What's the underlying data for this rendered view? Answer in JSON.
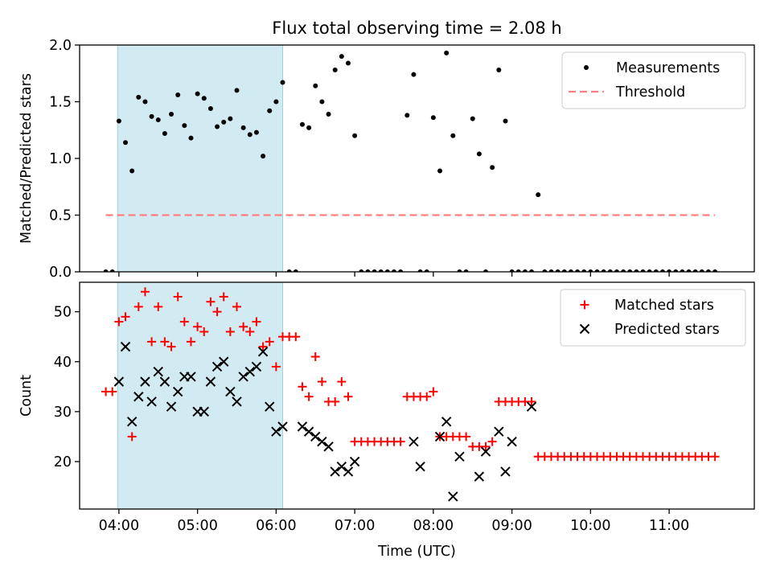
{
  "chart_data": [
    {
      "type": "scatter",
      "title": "Flux total observing time = 2.08 h",
      "xlabel": "",
      "ylabel": "Matched/Predicted stars",
      "xlim": [
        "03:30",
        "12:05"
      ],
      "ylim": [
        0,
        2.0
      ],
      "yticks": [
        "0.0",
        "0.5",
        "1.0",
        "1.5",
        "2.0"
      ],
      "xticks": [
        "04:00",
        "05:00",
        "06:00",
        "07:00",
        "08:00",
        "09:00",
        "10:00",
        "11:00"
      ],
      "xtick_labels_shown": false,
      "grid": false,
      "legend": "top-right",
      "shaded_span": {
        "x": [
          "03:59",
          "06:05"
        ],
        "color": "#add8e6"
      },
      "series": [
        {
          "name": "Measurements",
          "marker": "dot",
          "color": "#000000",
          "x": [
            "03:50",
            "03:55",
            "04:00",
            "04:05",
            "04:10",
            "04:15",
            "04:20",
            "04:25",
            "04:30",
            "04:35",
            "04:40",
            "04:45",
            "04:50",
            "04:55",
            "05:00",
            "05:05",
            "05:10",
            "05:15",
            "05:20",
            "05:25",
            "05:30",
            "05:35",
            "05:40",
            "05:45",
            "05:50",
            "05:55",
            "06:00",
            "06:05",
            "06:10",
            "06:15",
            "06:20",
            "06:25",
            "06:30",
            "06:35",
            "06:40",
            "06:45",
            "06:50",
            "06:55",
            "07:00",
            "07:05",
            "07:10",
            "07:15",
            "07:20",
            "07:25",
            "07:30",
            "07:35",
            "07:40",
            "07:45",
            "07:50",
            "07:55",
            "08:00",
            "08:05",
            "08:10",
            "08:15",
            "08:20",
            "08:25",
            "08:30",
            "08:35",
            "08:40",
            "08:45",
            "08:50",
            "08:55",
            "09:00",
            "09:05",
            "09:10",
            "09:15",
            "09:20",
            "09:25",
            "09:30",
            "09:35",
            "09:40",
            "09:45",
            "09:50",
            "09:55",
            "10:00",
            "10:05",
            "10:10",
            "10:15",
            "10:20",
            "10:25",
            "10:30",
            "10:35",
            "10:40",
            "10:45",
            "10:50",
            "10:55",
            "11:00",
            "11:05",
            "11:10",
            "11:15",
            "11:20",
            "11:25",
            "11:30",
            "11:35"
          ],
          "y": [
            0,
            0,
            1.33,
            1.14,
            0.89,
            1.54,
            1.5,
            1.37,
            1.34,
            1.22,
            1.39,
            1.56,
            1.29,
            1.18,
            1.57,
            1.53,
            1.44,
            1.28,
            1.32,
            1.35,
            1.6,
            1.27,
            1.21,
            1.23,
            1.02,
            1.42,
            1.5,
            1.67,
            0,
            0,
            1.3,
            1.27,
            1.64,
            1.5,
            1.39,
            1.78,
            1.9,
            1.84,
            1.2,
            0,
            0,
            0,
            0,
            0,
            0,
            0,
            1.38,
            1.74,
            0,
            0,
            1.36,
            0.89,
            1.93,
            1.2,
            0,
            0,
            1.35,
            1.04,
            0,
            0.92,
            1.78,
            1.33,
            0,
            0,
            0,
            0,
            0.68,
            0,
            0,
            0,
            0,
            0,
            0,
            0,
            0,
            0,
            0,
            0,
            0,
            0,
            0,
            0,
            0,
            0,
            0,
            0,
            0,
            0,
            0,
            0,
            0,
            0,
            0,
            0
          ]
        },
        {
          "name": "Threshold",
          "marker": "dashed-line",
          "color": "#ff7f7f",
          "x": [
            "03:50",
            "11:35"
          ],
          "y": [
            0.5,
            0.5
          ]
        }
      ]
    },
    {
      "type": "scatter",
      "title": "",
      "xlabel": "Time (UTC)",
      "ylabel": "Count",
      "xlim": [
        "03:30",
        "12:05"
      ],
      "ylim": [
        10.5,
        55.9
      ],
      "yticks": [
        "20",
        "30",
        "40",
        "50"
      ],
      "xticks": [
        "04:00",
        "05:00",
        "06:00",
        "07:00",
        "08:00",
        "09:00",
        "10:00",
        "11:00"
      ],
      "grid": false,
      "legend": "top-right",
      "shaded_span": {
        "x": [
          "03:59",
          "06:05"
        ],
        "color": "#add8e6"
      },
      "series": [
        {
          "name": "Matched stars",
          "marker": "plus",
          "color": "#ff0000",
          "x": [
            "03:50",
            "03:55",
            "04:00",
            "04:05",
            "04:10",
            "04:15",
            "04:20",
            "04:25",
            "04:30",
            "04:35",
            "04:40",
            "04:45",
            "04:50",
            "04:55",
            "05:00",
            "05:05",
            "05:10",
            "05:15",
            "05:20",
            "05:25",
            "05:30",
            "05:35",
            "05:40",
            "05:45",
            "05:50",
            "05:55",
            "06:00",
            "06:05",
            "06:10",
            "06:15",
            "06:20",
            "06:25",
            "06:30",
            "06:35",
            "06:40",
            "06:45",
            "06:50",
            "06:55",
            "07:00",
            "07:05",
            "07:10",
            "07:15",
            "07:20",
            "07:25",
            "07:30",
            "07:35",
            "07:40",
            "07:45",
            "07:50",
            "07:55",
            "08:00",
            "08:05",
            "08:10",
            "08:15",
            "08:20",
            "08:25",
            "08:30",
            "08:35",
            "08:40",
            "08:45",
            "08:50",
            "08:55",
            "09:00",
            "09:05",
            "09:10",
            "09:15",
            "09:20",
            "09:25",
            "09:30",
            "09:35",
            "09:40",
            "09:45",
            "09:50",
            "09:55",
            "10:00",
            "10:05",
            "10:10",
            "10:15",
            "10:20",
            "10:25",
            "10:30",
            "10:35",
            "10:40",
            "10:45",
            "10:50",
            "10:55",
            "11:00",
            "11:05",
            "11:10",
            "11:15",
            "11:20",
            "11:25",
            "11:30",
            "11:35"
          ],
          "y": [
            34,
            34,
            48,
            49,
            25,
            51,
            54,
            44,
            51,
            44,
            43,
            53,
            48,
            44,
            47,
            46,
            52,
            50,
            53,
            46,
            51,
            47,
            46,
            48,
            43,
            44,
            39,
            45,
            45,
            45,
            35,
            33,
            41,
            36,
            32,
            32,
            36,
            33,
            24,
            24,
            24,
            24,
            24,
            24,
            24,
            24,
            33,
            33,
            33,
            33,
            34,
            25,
            25,
            25,
            25,
            25,
            23,
            23,
            23,
            24,
            32,
            32,
            32,
            32,
            32,
            32,
            21,
            21,
            21,
            21,
            21,
            21,
            21,
            21,
            21,
            21,
            21,
            21,
            21,
            21,
            21,
            21,
            21,
            21,
            21,
            21,
            21,
            21,
            21,
            21,
            21,
            21,
            21,
            21
          ]
        },
        {
          "name": "Predicted stars",
          "marker": "x",
          "color": "#000000",
          "x": [
            "04:00",
            "04:05",
            "04:10",
            "04:15",
            "04:20",
            "04:25",
            "04:30",
            "04:35",
            "04:40",
            "04:45",
            "04:50",
            "04:55",
            "05:00",
            "05:05",
            "05:10",
            "05:15",
            "05:20",
            "05:25",
            "05:30",
            "05:35",
            "05:40",
            "05:45",
            "05:50",
            "05:55",
            "06:00",
            "06:05",
            "06:20",
            "06:25",
            "06:30",
            "06:35",
            "06:40",
            "06:45",
            "06:50",
            "06:55",
            "07:00",
            "07:45",
            "07:50",
            "08:05",
            "08:10",
            "08:15",
            "08:20",
            "08:35",
            "08:40",
            "08:50",
            "08:55",
            "09:00",
            "09:15"
          ],
          "y": [
            36,
            43,
            28,
            33,
            36,
            32,
            38,
            36,
            31,
            34,
            37,
            37,
            30,
            30,
            36,
            39,
            40,
            34,
            32,
            37,
            38,
            39,
            42,
            31,
            26,
            27,
            27,
            26,
            25,
            24,
            23,
            18,
            19,
            18,
            20,
            24,
            19,
            25,
            28,
            13,
            21,
            17,
            22,
            26,
            18,
            24,
            31
          ]
        }
      ]
    }
  ]
}
